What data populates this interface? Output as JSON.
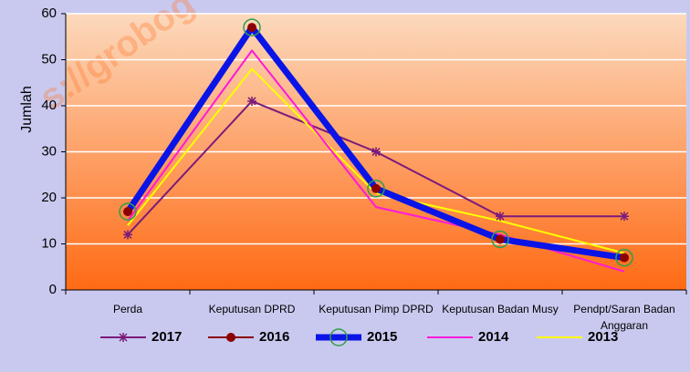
{
  "watermark": "s://grobog",
  "chart_data": {
    "type": "line",
    "y_label": "Jumlah",
    "categories": [
      "Perda",
      "Keputusan DPRD",
      "Keputusan Pimp DPRD",
      "Keputusan Badan Musy",
      "Pendpt/Saran Badan Anggaran"
    ],
    "ylim": [
      0,
      60
    ],
    "yticks": [
      0,
      10,
      20,
      30,
      40,
      50,
      60
    ],
    "grid": true,
    "legend": "bottom",
    "series": [
      {
        "name": "2017",
        "color": "#7b1a7b",
        "marker": "star",
        "values": [
          12,
          41,
          30,
          16,
          16
        ]
      },
      {
        "name": "2016",
        "color": "#8b0000",
        "marker": "circle",
        "values": [
          17,
          57,
          22,
          11,
          7
        ]
      },
      {
        "name": "2015",
        "color": "#0a14e6",
        "marker": "ring",
        "values": [
          17,
          57,
          22,
          11,
          7
        ]
      },
      {
        "name": "2014",
        "color": "#ff1ad9",
        "marker": "none",
        "values": [
          15,
          52,
          18,
          12,
          4
        ]
      },
      {
        "name": "2013",
        "color": "#ffff00",
        "marker": "none",
        "values": [
          14,
          48,
          21,
          15,
          8
        ]
      }
    ]
  }
}
